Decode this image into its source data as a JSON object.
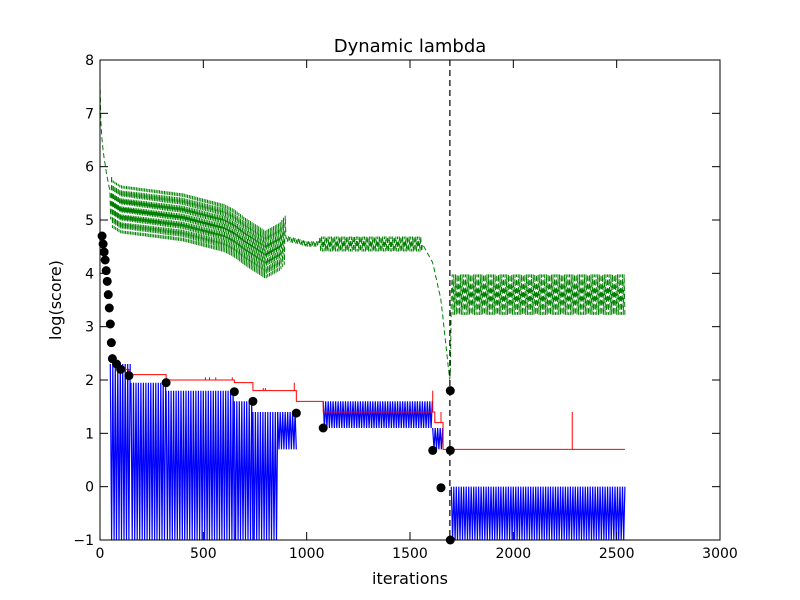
{
  "chart_data": {
    "type": "line",
    "title": "Dynamic lambda",
    "xlabel": "iterations",
    "ylabel": "log(score)",
    "xlim": [
      0,
      3000
    ],
    "ylim": [
      -1,
      8
    ],
    "xticks": [
      0,
      500,
      1000,
      1500,
      2000,
      2500,
      3000
    ],
    "yticks": [
      -1,
      0,
      1,
      2,
      3,
      4,
      5,
      6,
      7,
      8
    ],
    "grid": false,
    "colors": {
      "green": "#008000",
      "red": "#ff0000",
      "blue": "#0000ff",
      "black": "#000000"
    },
    "vline": {
      "x": 1693,
      "style": "dashed"
    },
    "series": [
      {
        "style": "green-dashed",
        "points": [
          [
            0,
            7.6
          ],
          [
            5,
            6.7
          ],
          [
            15,
            6.3
          ],
          [
            30,
            5.9
          ],
          [
            50,
            5.5
          ],
          [
            60,
            5.3
          ],
          [
            100,
            5.2
          ],
          [
            200,
            5.15
          ],
          [
            300,
            5.1
          ],
          [
            400,
            5.05
          ],
          [
            500,
            4.95
          ],
          [
            600,
            4.85
          ],
          [
            650,
            4.75
          ],
          [
            700,
            4.6
          ],
          [
            800,
            4.35
          ],
          [
            870,
            4.5
          ],
          [
            900,
            4.65
          ],
          [
            960,
            4.6
          ],
          [
            1000,
            4.55
          ],
          [
            1060,
            4.55
          ],
          [
            1100,
            4.55
          ],
          [
            1200,
            4.55
          ],
          [
            1300,
            4.55
          ],
          [
            1400,
            4.55
          ],
          [
            1560,
            4.55
          ],
          [
            1610,
            4.2
          ],
          [
            1650,
            3.5
          ],
          [
            1695,
            1.9
          ],
          [
            1700,
            3.6
          ],
          [
            2540,
            3.6
          ]
        ]
      },
      {
        "style": "red-step",
        "points": [
          [
            100,
            2.2
          ],
          [
            140,
            2.1
          ],
          [
            320,
            2.0
          ],
          [
            650,
            1.95
          ],
          [
            740,
            1.8
          ],
          [
            950,
            1.6
          ],
          [
            1080,
            1.4
          ],
          [
            1620,
            1.2
          ],
          [
            1660,
            0.7
          ],
          [
            1700,
            0.7
          ],
          [
            2540,
            0.7
          ]
        ],
        "spikes": [
          [
            510,
            2.05
          ],
          [
            530,
            2.05
          ],
          [
            560,
            2.05
          ],
          [
            640,
            2.05
          ],
          [
            790,
            1.85
          ],
          [
            800,
            1.85
          ],
          [
            860,
            1.8
          ],
          [
            880,
            1.8
          ],
          [
            910,
            1.8
          ],
          [
            940,
            1.95
          ],
          [
            1610,
            1.8
          ],
          [
            1650,
            1.4
          ],
          [
            2285,
            1.4
          ]
        ]
      },
      {
        "style": "blue-oscillation",
        "bands": [
          [
            50,
            150,
            2.3,
            -1
          ],
          [
            150,
            320,
            1.95,
            -1
          ],
          [
            320,
            650,
            1.8,
            -1
          ],
          [
            650,
            740,
            1.6,
            -1
          ],
          [
            740,
            860,
            1.4,
            -1
          ],
          [
            860,
            950,
            1.4,
            0.7
          ],
          [
            1080,
            1610,
            1.6,
            1.1
          ],
          [
            1610,
            1660,
            1.1,
            0.7
          ],
          [
            1700,
            2540,
            0.0,
            -1
          ]
        ]
      },
      {
        "style": "black-markers",
        "points": [
          [
            10,
            4.7
          ],
          [
            15,
            4.55
          ],
          [
            20,
            4.4
          ],
          [
            25,
            4.25
          ],
          [
            30,
            4.05
          ],
          [
            35,
            3.85
          ],
          [
            40,
            3.6
          ],
          [
            45,
            3.35
          ],
          [
            50,
            3.05
          ],
          [
            55,
            2.7
          ],
          [
            60,
            2.4
          ],
          [
            80,
            2.3
          ],
          [
            100,
            2.2
          ],
          [
            140,
            2.08
          ],
          [
            320,
            1.95
          ],
          [
            650,
            1.78
          ],
          [
            740,
            1.6
          ],
          [
            950,
            1.38
          ],
          [
            1080,
            1.1
          ],
          [
            1610,
            0.68
          ],
          [
            1650,
            -0.02
          ],
          [
            1695,
            1.8
          ],
          [
            1695,
            0.68
          ],
          [
            1695,
            -1
          ]
        ]
      }
    ]
  }
}
